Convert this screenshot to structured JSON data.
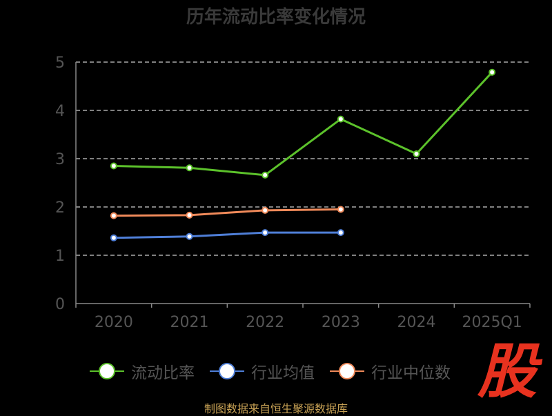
{
  "title": "历年流动比率变化情况",
  "footer": "制图数据来自恒生聚源数据库",
  "logo_text": "股",
  "colors": {
    "background": "#000000",
    "axis": "#888888",
    "grid": "#ffffff",
    "tick_text": "#555555",
    "logo": "#e8321f"
  },
  "chart_data": {
    "type": "line",
    "title": "历年流动比率变化情况",
    "x": [
      "2020",
      "2021",
      "2022",
      "2023",
      "2024",
      "2025Q1"
    ],
    "ylim": [
      0,
      5
    ],
    "yticks": [
      "0",
      "1",
      "2",
      "3",
      "4",
      "5"
    ],
    "grid": true,
    "legend_position": "bottom",
    "series": [
      {
        "name": "流动比率",
        "color": "#5cc22b",
        "values": [
          2.85,
          2.81,
          2.66,
          3.82,
          3.1,
          4.79
        ]
      },
      {
        "name": "行业均值",
        "color": "#4f7fd8",
        "values": [
          1.36,
          1.39,
          1.47,
          1.47,
          null,
          null
        ]
      },
      {
        "name": "行业中位数",
        "color": "#f08a5a",
        "values": [
          1.82,
          1.83,
          1.93,
          1.95,
          null,
          null
        ]
      }
    ]
  }
}
